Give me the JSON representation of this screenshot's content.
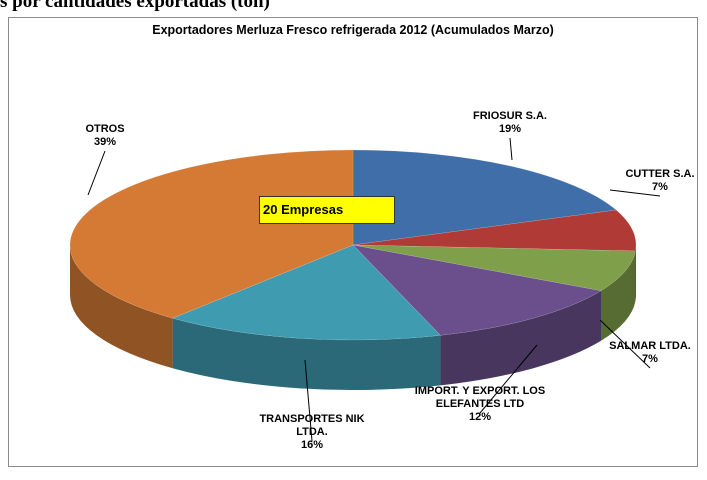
{
  "caption": "s por cantidades exportadas (ton)",
  "chart_data": {
    "type": "pie",
    "title": "Exportadores Merluza Fresco refrigerada 2012 (Acumulados Marzo)",
    "annotation": "20 Empresas",
    "categories": [
      "FRIOSUR S.A.",
      "CUTTER S.A.",
      "SALMAR LTDA.",
      "IMPORT. Y EXPORT. LOS ELEFANTES LTD",
      "TRANSPORTES NIK LTDA.",
      "OTROS"
    ],
    "values": [
      19,
      7,
      7,
      12,
      16,
      39
    ],
    "value_labels": [
      "19%",
      "7%",
      "7%",
      "12%",
      "16%",
      "39%"
    ],
    "colors": [
      "#3f6ea8",
      "#b03a36",
      "#7f9f4a",
      "#6a4f8c",
      "#3f9bb0",
      "#d47a34"
    ]
  }
}
